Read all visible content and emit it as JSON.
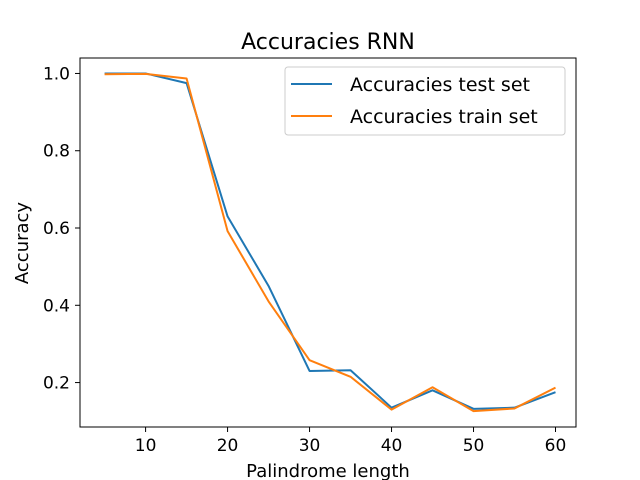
{
  "chart_data": {
    "type": "line",
    "title": "Accuracies RNN",
    "xlabel": "Palindrome length",
    "ylabel": "Accuracy",
    "xlim": [
      2,
      62.5
    ],
    "ylim": [
      0.085,
      1.04
    ],
    "xticks": [
      10,
      20,
      30,
      40,
      50,
      60
    ],
    "yticks": [
      0.2,
      0.4,
      0.6,
      0.8,
      1.0
    ],
    "xtick_labels": [
      "10",
      "20",
      "30",
      "40",
      "50",
      "60"
    ],
    "ytick_labels": [
      "0.2",
      "0.4",
      "0.6",
      "0.8",
      "1.0"
    ],
    "grid": false,
    "legend_position": "top-right",
    "x": [
      5,
      10,
      15,
      20,
      25,
      30,
      35,
      40,
      45,
      50,
      55,
      60
    ],
    "series": [
      {
        "name": "Accuracies test set",
        "color": "#1f77b4",
        "values": [
          1.0,
          1.0,
          0.975,
          0.63,
          0.45,
          0.23,
          0.232,
          0.135,
          0.18,
          0.132,
          0.135,
          0.175
        ]
      },
      {
        "name": "Accuracies train set",
        "color": "#ff7f0e",
        "values": [
          0.998,
          0.999,
          0.987,
          0.592,
          0.41,
          0.258,
          0.215,
          0.13,
          0.188,
          0.126,
          0.133,
          0.187
        ]
      }
    ]
  }
}
